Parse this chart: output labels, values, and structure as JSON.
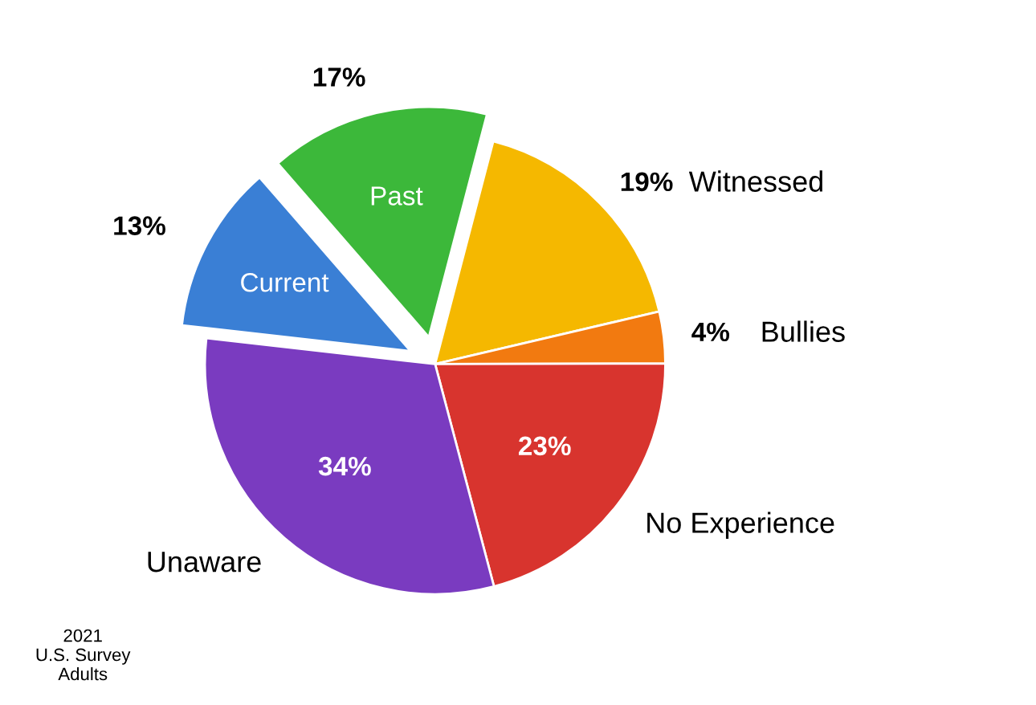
{
  "chart_data": {
    "type": "pie",
    "categories": [
      "Past",
      "Witnessed",
      "Bullies",
      "No Experience",
      "Unaware",
      "Current"
    ],
    "values": [
      17,
      19,
      4,
      23,
      34,
      13
    ],
    "value_labels": [
      "17%",
      "19%",
      "4%",
      "23%",
      "34%",
      "13%"
    ],
    "colors": [
      "#3cb83a",
      "#f5b800",
      "#f27a10",
      "#d8342e",
      "#7a3bc0",
      "#3a7fd5"
    ],
    "annotations": [
      "2021\nU.S. Survey\nAdults"
    ],
    "legend": false
  }
}
